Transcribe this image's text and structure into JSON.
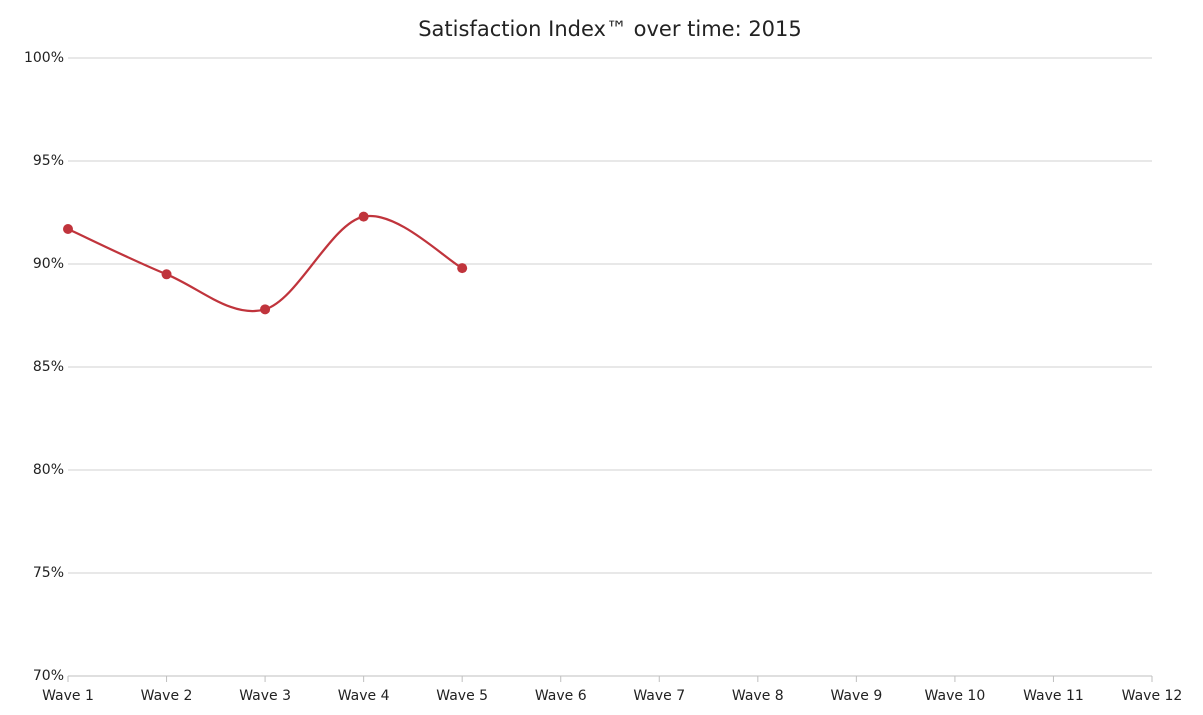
{
  "chart_data": {
    "type": "line",
    "title": "Satisfaction Index™ over time: 2015",
    "categories": [
      "Wave 1",
      "Wave 2",
      "Wave 3",
      "Wave 4",
      "Wave 5",
      "Wave 6",
      "Wave 7",
      "Wave 8",
      "Wave 9",
      "Wave 10",
      "Wave 11",
      "Wave 12"
    ],
    "series": [
      {
        "name": "Satisfaction Index™",
        "color": "#c0343c",
        "values": [
          91.7,
          89.5,
          87.8,
          92.3,
          89.8,
          null,
          null,
          null,
          null,
          null,
          null,
          null
        ]
      }
    ],
    "ylim": [
      70,
      100
    ],
    "yticks": [
      {
        "value": 70,
        "label": "70%"
      },
      {
        "value": 75,
        "label": "75%"
      },
      {
        "value": 80,
        "label": "80%"
      },
      {
        "value": 85,
        "label": "85%"
      },
      {
        "value": 90,
        "label": "90%"
      },
      {
        "value": 95,
        "label": "95%"
      },
      {
        "value": 100,
        "label": "100%"
      }
    ],
    "grid": true,
    "smooth": true
  }
}
